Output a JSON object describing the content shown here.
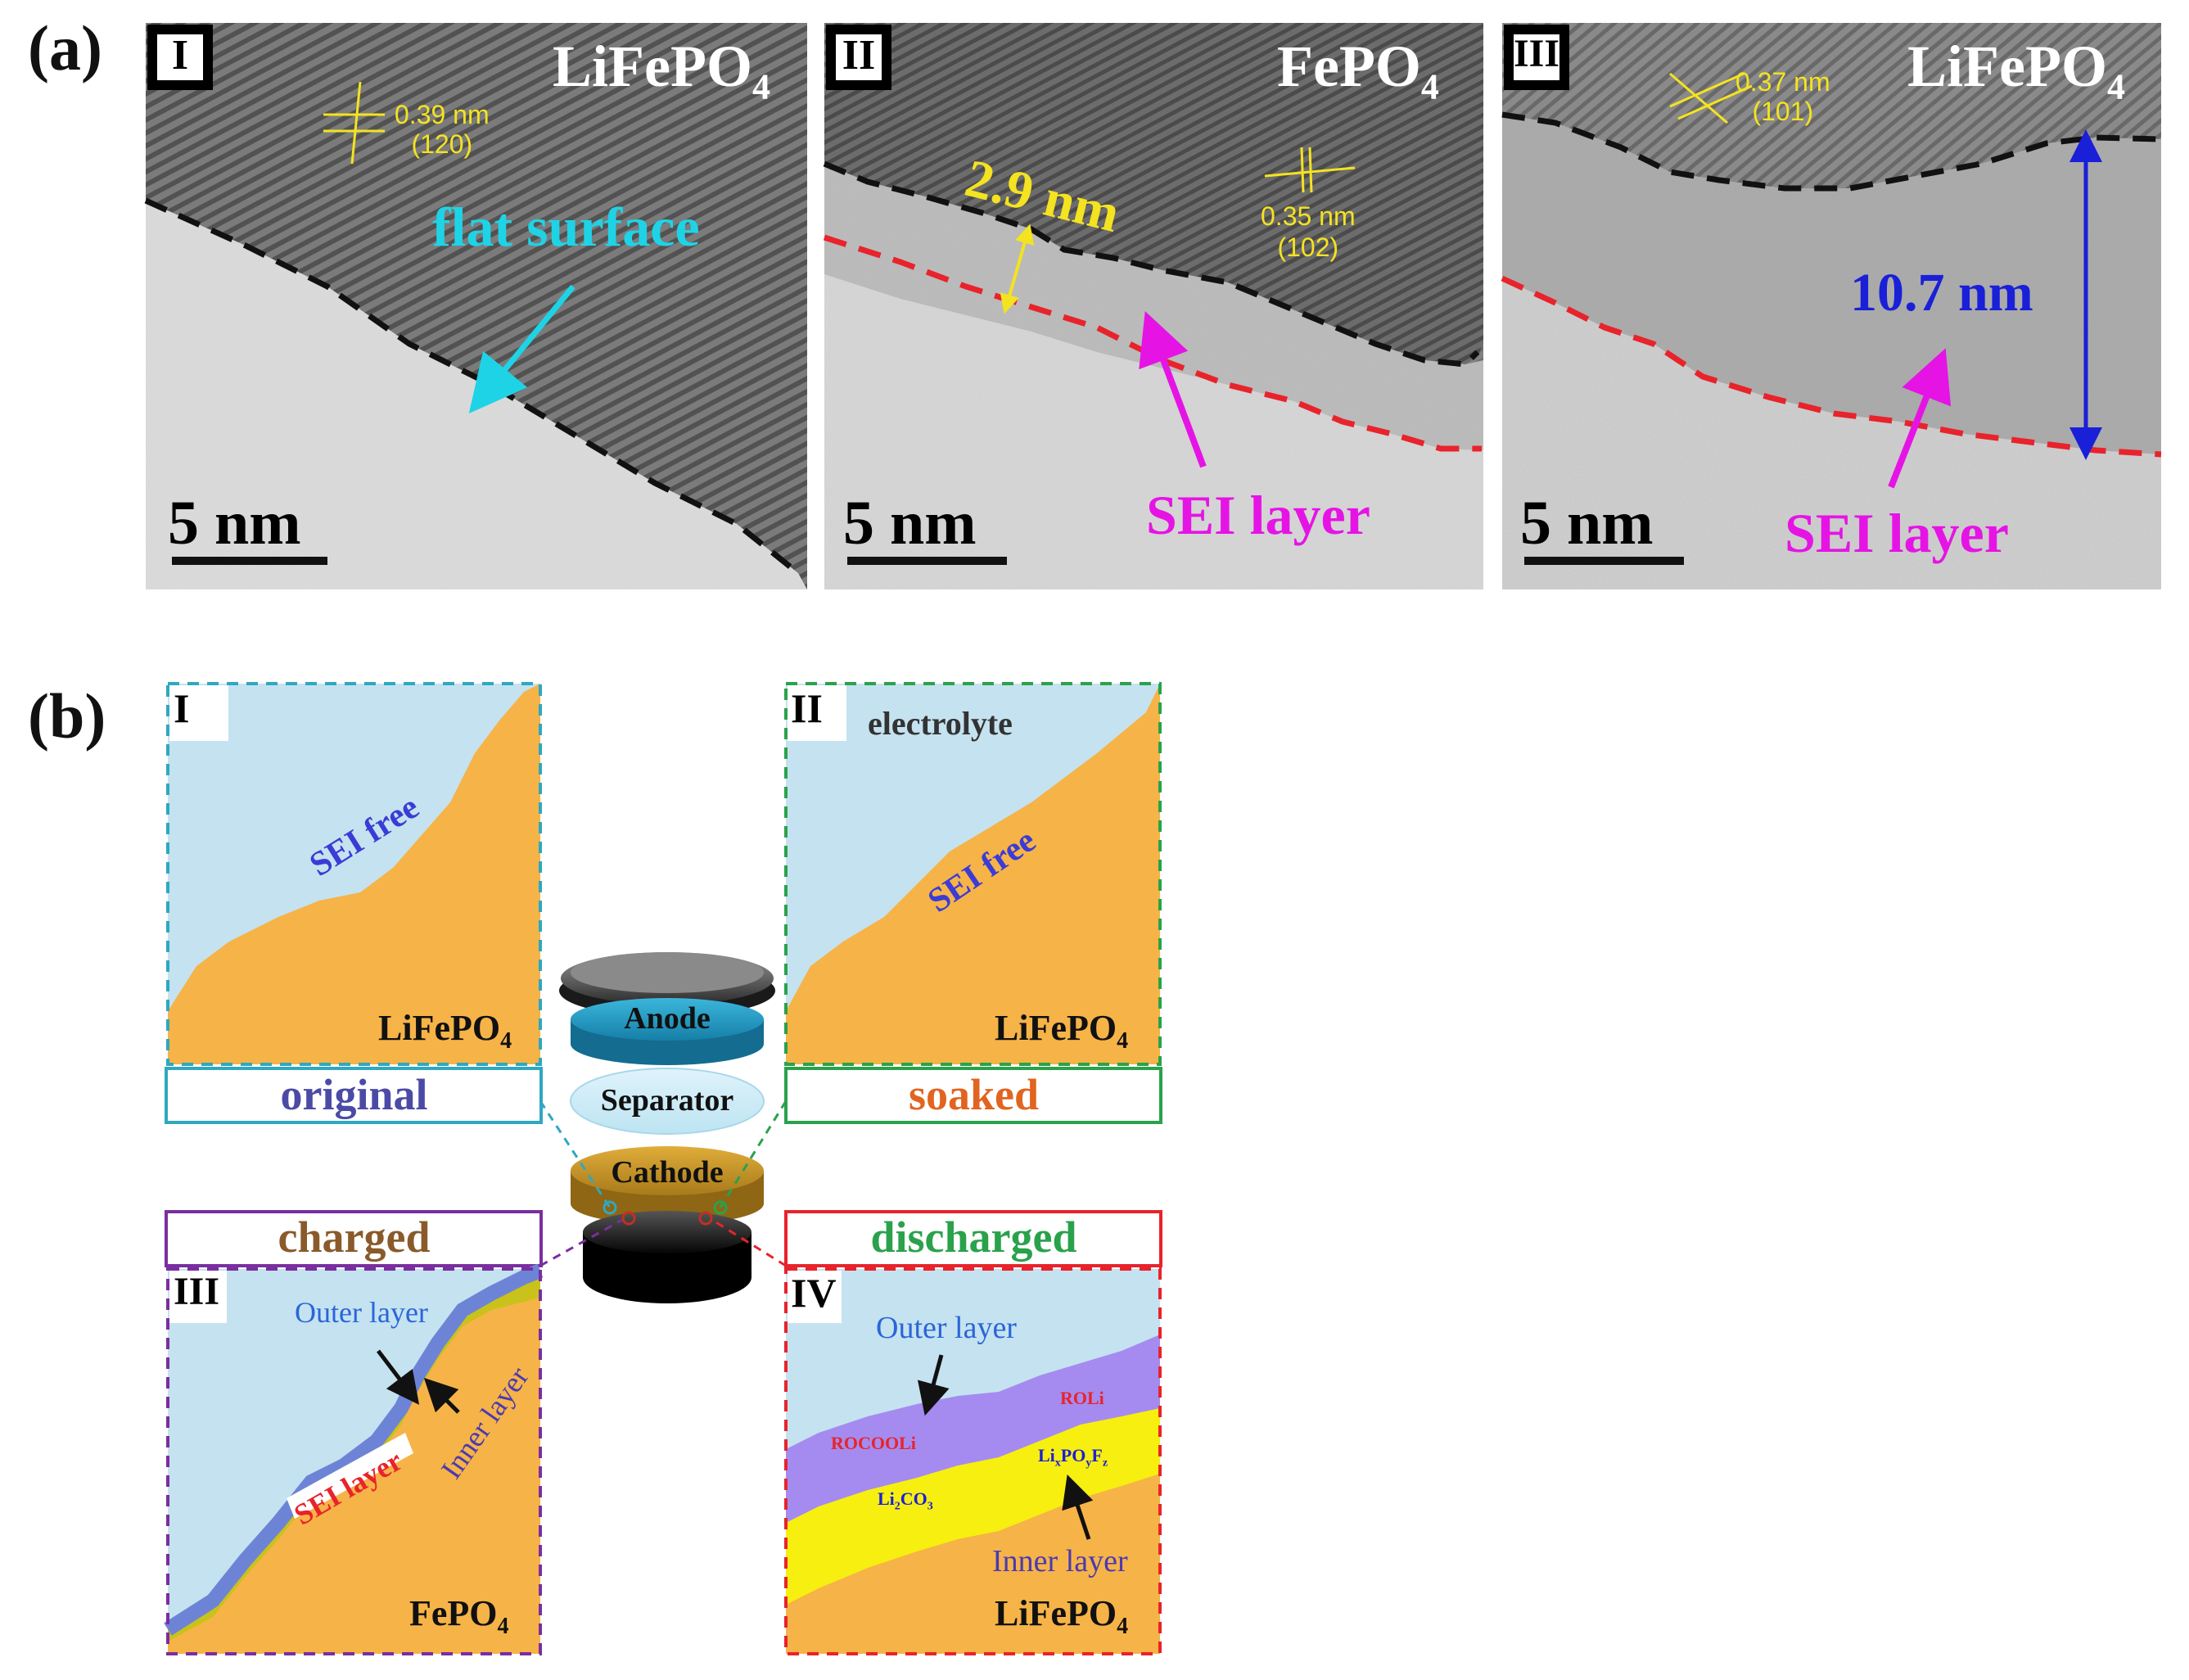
{
  "panel_a": {
    "label": "(a)",
    "images": [
      {
        "roman": "I",
        "material": "LiFePO",
        "material_sub": "4",
        "spacing": "0.39 nm",
        "plane": "(120)",
        "annotation": "flat surface",
        "scale": "5 nm"
      },
      {
        "roman": "II",
        "material": "FePO",
        "material_sub": "4",
        "thickness": "2.9 nm",
        "spacing": "0.35 nm",
        "plane": "(102)",
        "annotation": "SEI layer",
        "scale": "5 nm"
      },
      {
        "roman": "III",
        "material": "LiFePO",
        "material_sub": "4",
        "spacing": "0.37 nm",
        "plane": "(101)",
        "thickness": "10.7 nm",
        "annotation": "SEI layer",
        "scale": "5 nm"
      }
    ]
  },
  "panel_b": {
    "label": "(b)",
    "cell": {
      "anode": "Anode",
      "separator": "Separator",
      "cathode": "Cathode"
    },
    "states": [
      {
        "roman": "I",
        "caption": "original",
        "surface_text": "SEI free",
        "material": "LiFePO",
        "material_sub": "4"
      },
      {
        "roman": "II",
        "caption": "soaked",
        "top_text": "electrolyte",
        "surface_text": "SEI free",
        "material": "LiFePO",
        "material_sub": "4"
      },
      {
        "roman": "III",
        "caption": "charged",
        "outer": "Outer layer",
        "inner": "Inner layer",
        "sei": "SEI layer",
        "material": "FePO",
        "material_sub": "4"
      },
      {
        "roman": "IV",
        "caption": "discharged",
        "outer": "Outer layer",
        "inner": "Inner layer",
        "species_1": "ROCOOLi",
        "species_2": "ROLi",
        "species_3": "Li",
        "species_3_sub": "2",
        "species_3_tail": "CO",
        "species_3_sub2": "3",
        "species_4": "Li",
        "species_4_sub": "x",
        "species_4_mid": "PO",
        "species_4_sub2": "y",
        "species_4_mid2": "F",
        "species_4_sub3": "z",
        "material": "LiFePO",
        "material_sub": "4"
      }
    ]
  },
  "colors": {
    "orange": "#f6b348",
    "electrolyte": "#c5e2f0",
    "magenta": "#e514e5",
    "cyan": "#1fd3e6",
    "yellow": "#f4e320",
    "blue": "#1a1fd8",
    "red_dash": "#e8232b",
    "outer_layer": "#6d84d6",
    "sei_purple": "#a58bf0",
    "inner_yellow": "#f7ef10"
  }
}
